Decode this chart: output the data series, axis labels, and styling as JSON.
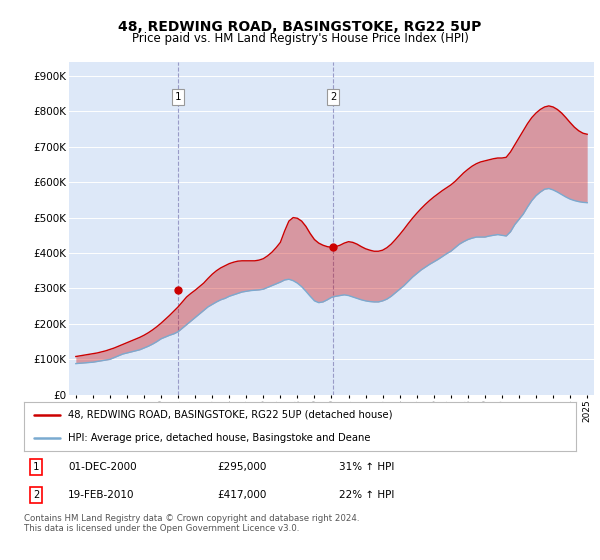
{
  "title": "48, REDWING ROAD, BASINGSTOKE, RG22 5UP",
  "subtitle": "Price paid vs. HM Land Registry's House Price Index (HPI)",
  "background_color": "#ffffff",
  "plot_bg_color": "#dde8f8",
  "grid_color": "#ffffff",
  "red_line_color": "#cc0000",
  "blue_line_color": "#7aaad0",
  "fill_red_alpha": 0.35,
  "fill_blue_alpha": 0.35,
  "marker1_x": 2001.0,
  "marker1_value": 295000,
  "marker1_label": "1",
  "marker1_date": "01-DEC-2000",
  "marker1_price": "£295,000",
  "marker1_hpi": "31% ↑ HPI",
  "marker2_x": 2010.1,
  "marker2_value": 417000,
  "marker2_label": "2",
  "marker2_date": "19-FEB-2010",
  "marker2_price": "£417,000",
  "marker2_hpi": "22% ↑ HPI",
  "legend_label_red": "48, REDWING ROAD, BASINGSTOKE, RG22 5UP (detached house)",
  "legend_label_blue": "HPI: Average price, detached house, Basingstoke and Deane",
  "footer": "Contains HM Land Registry data © Crown copyright and database right 2024.\nThis data is licensed under the Open Government Licence v3.0.",
  "xlim": [
    1994.6,
    2025.4
  ],
  "ylim": [
    0,
    940000
  ],
  "yticks": [
    0,
    100000,
    200000,
    300000,
    400000,
    500000,
    600000,
    700000,
    800000,
    900000
  ],
  "ytick_labels": [
    "£0",
    "£100K",
    "£200K",
    "£300K",
    "£400K",
    "£500K",
    "£600K",
    "£700K",
    "£800K",
    "£900K"
  ],
  "hpi_x": [
    1995.0,
    1995.25,
    1995.5,
    1995.75,
    1996.0,
    1996.25,
    1996.5,
    1996.75,
    1997.0,
    1997.25,
    1997.5,
    1997.75,
    1998.0,
    1998.25,
    1998.5,
    1998.75,
    1999.0,
    1999.25,
    1999.5,
    1999.75,
    2000.0,
    2000.25,
    2000.5,
    2000.75,
    2001.0,
    2001.25,
    2001.5,
    2001.75,
    2002.0,
    2002.25,
    2002.5,
    2002.75,
    2003.0,
    2003.25,
    2003.5,
    2003.75,
    2004.0,
    2004.25,
    2004.5,
    2004.75,
    2005.0,
    2005.25,
    2005.5,
    2005.75,
    2006.0,
    2006.25,
    2006.5,
    2006.75,
    2007.0,
    2007.25,
    2007.5,
    2007.75,
    2008.0,
    2008.25,
    2008.5,
    2008.75,
    2009.0,
    2009.25,
    2009.5,
    2009.75,
    2010.0,
    2010.25,
    2010.5,
    2010.75,
    2011.0,
    2011.25,
    2011.5,
    2011.75,
    2012.0,
    2012.25,
    2012.5,
    2012.75,
    2013.0,
    2013.25,
    2013.5,
    2013.75,
    2014.0,
    2014.25,
    2014.5,
    2014.75,
    2015.0,
    2015.25,
    2015.5,
    2015.75,
    2016.0,
    2016.25,
    2016.5,
    2016.75,
    2017.0,
    2017.25,
    2017.5,
    2017.75,
    2018.0,
    2018.25,
    2018.5,
    2018.75,
    2019.0,
    2019.25,
    2019.5,
    2019.75,
    2020.0,
    2020.25,
    2020.5,
    2020.75,
    2021.0,
    2021.25,
    2021.5,
    2021.75,
    2022.0,
    2022.25,
    2022.5,
    2022.75,
    2023.0,
    2023.25,
    2023.5,
    2023.75,
    2024.0,
    2024.25,
    2024.5,
    2024.75,
    2025.0
  ],
  "hpi_y": [
    88000,
    89000,
    90000,
    91000,
    92000,
    94000,
    96000,
    98000,
    100000,
    105000,
    110000,
    115000,
    118000,
    121000,
    124000,
    127000,
    132000,
    137000,
    143000,
    150000,
    158000,
    163000,
    168000,
    172000,
    178000,
    188000,
    198000,
    208000,
    218000,
    228000,
    238000,
    248000,
    255000,
    262000,
    268000,
    272000,
    278000,
    282000,
    286000,
    290000,
    292000,
    294000,
    295000,
    296000,
    298000,
    303000,
    308000,
    313000,
    318000,
    324000,
    326000,
    322000,
    315000,
    305000,
    292000,
    278000,
    265000,
    260000,
    262000,
    268000,
    275000,
    278000,
    280000,
    282000,
    280000,
    276000,
    272000,
    268000,
    265000,
    263000,
    262000,
    262000,
    265000,
    270000,
    278000,
    288000,
    298000,
    308000,
    320000,
    332000,
    342000,
    352000,
    360000,
    368000,
    375000,
    382000,
    390000,
    398000,
    405000,
    415000,
    425000,
    432000,
    438000,
    442000,
    445000,
    445000,
    445000,
    448000,
    450000,
    452000,
    450000,
    448000,
    460000,
    480000,
    495000,
    510000,
    530000,
    548000,
    562000,
    572000,
    580000,
    582000,
    578000,
    572000,
    565000,
    558000,
    552000,
    548000,
    545000,
    543000,
    542000
  ],
  "red_x": [
    1995.0,
    1995.25,
    1995.5,
    1995.75,
    1996.0,
    1996.25,
    1996.5,
    1996.75,
    1997.0,
    1997.25,
    1997.5,
    1997.75,
    1998.0,
    1998.25,
    1998.5,
    1998.75,
    1999.0,
    1999.25,
    1999.5,
    1999.75,
    2000.0,
    2000.25,
    2000.5,
    2000.75,
    2001.0,
    2001.25,
    2001.5,
    2001.75,
    2002.0,
    2002.25,
    2002.5,
    2002.75,
    2003.0,
    2003.25,
    2003.5,
    2003.75,
    2004.0,
    2004.25,
    2004.5,
    2004.75,
    2005.0,
    2005.25,
    2005.5,
    2005.75,
    2006.0,
    2006.25,
    2006.5,
    2006.75,
    2007.0,
    2007.25,
    2007.5,
    2007.75,
    2008.0,
    2008.25,
    2008.5,
    2008.75,
    2009.0,
    2009.25,
    2009.5,
    2009.75,
    2010.0,
    2010.25,
    2010.5,
    2010.75,
    2011.0,
    2011.25,
    2011.5,
    2011.75,
    2012.0,
    2012.25,
    2012.5,
    2012.75,
    2013.0,
    2013.25,
    2013.5,
    2013.75,
    2014.0,
    2014.25,
    2014.5,
    2014.75,
    2015.0,
    2015.25,
    2015.5,
    2015.75,
    2016.0,
    2016.25,
    2016.5,
    2016.75,
    2017.0,
    2017.25,
    2017.5,
    2017.75,
    2018.0,
    2018.25,
    2018.5,
    2018.75,
    2019.0,
    2019.25,
    2019.5,
    2019.75,
    2020.0,
    2020.25,
    2020.5,
    2020.75,
    2021.0,
    2021.25,
    2021.5,
    2021.75,
    2022.0,
    2022.25,
    2022.5,
    2022.75,
    2023.0,
    2023.25,
    2023.5,
    2023.75,
    2024.0,
    2024.25,
    2024.5,
    2024.75,
    2025.0
  ],
  "red_y": [
    108000,
    110000,
    112000,
    114000,
    116000,
    118000,
    121000,
    124000,
    128000,
    132000,
    137000,
    142000,
    147000,
    152000,
    157000,
    162000,
    168000,
    175000,
    183000,
    192000,
    202000,
    213000,
    224000,
    236000,
    248000,
    262000,
    276000,
    286000,
    295000,
    305000,
    315000,
    328000,
    340000,
    350000,
    358000,
    364000,
    370000,
    374000,
    377000,
    378000,
    378000,
    378000,
    378000,
    380000,
    384000,
    392000,
    402000,
    415000,
    430000,
    462000,
    490000,
    500000,
    498000,
    490000,
    475000,
    455000,
    438000,
    428000,
    422000,
    418000,
    416000,
    418000,
    422000,
    428000,
    432000,
    430000,
    425000,
    418000,
    412000,
    408000,
    405000,
    405000,
    408000,
    415000,
    425000,
    438000,
    452000,
    467000,
    483000,
    498000,
    512000,
    525000,
    537000,
    548000,
    558000,
    567000,
    576000,
    584000,
    592000,
    602000,
    614000,
    626000,
    636000,
    645000,
    652000,
    657000,
    660000,
    663000,
    666000,
    668000,
    668000,
    670000,
    685000,
    705000,
    725000,
    745000,
    765000,
    782000,
    795000,
    805000,
    812000,
    815000,
    812000,
    805000,
    795000,
    782000,
    768000,
    755000,
    745000,
    738000,
    735000
  ]
}
